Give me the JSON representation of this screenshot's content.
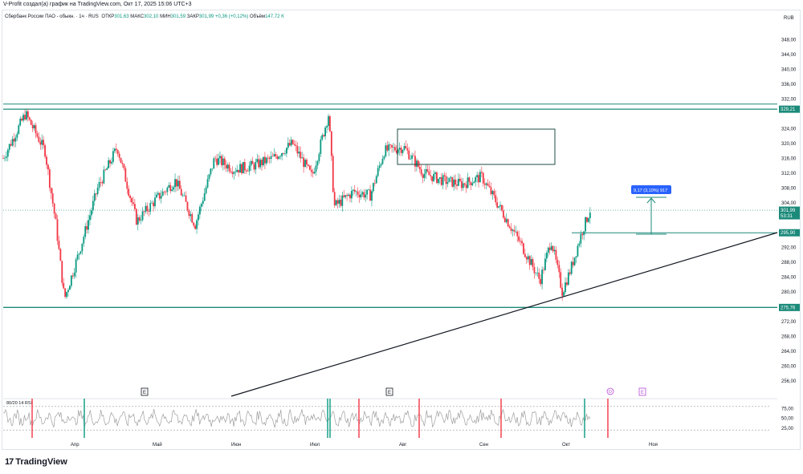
{
  "header": {
    "caption": "V-Profit создал(а) график на TradingView.com, Окт 17, 2025 15:06 UTC+3"
  },
  "legend": {
    "symbol": "Сбербанк России ПАО - обыкн. · 1ч · RUS",
    "open_label": "ОТКР",
    "open": "301,63",
    "high_label": "МАКС",
    "high": "302,10",
    "low_label": "МИН",
    "low": "301,59",
    "close_label": "ЗАКР",
    "close": "301,99",
    "change": "+0,36 (+0,12%)",
    "volume_label": "Объём",
    "volume": "147,72 K"
  },
  "price_axis": {
    "currency": "RUB",
    "ticks": [
      "348,00",
      "344,00",
      "340,00",
      "336,00",
      "332,00",
      "324,00",
      "320,00",
      "316,00",
      "312,00",
      "308,00",
      "304,00",
      "292,00",
      "288,00",
      "284,00",
      "280,00",
      "272,00",
      "268,00",
      "264,00",
      "260,00",
      "256,00"
    ],
    "badges": [
      {
        "text": "329,21",
        "bg": "#1b8a7a"
      },
      {
        "text": "301,99",
        "bg": "#1b8a7a",
        "sub": "53:31"
      },
      {
        "text": "295,90",
        "bg": "#1b8a7a"
      },
      {
        "text": "275,76",
        "bg": "#1b8a7a"
      }
    ]
  },
  "time_axis": {
    "labels": [
      "Апр",
      "Май",
      "Июн",
      "Июл",
      "Авг",
      "Сен",
      "Окт",
      "Ноя"
    ]
  },
  "measure_label": "9,17 (3,10%) 917",
  "earnings_marker": "E",
  "dividend_marker": "D",
  "rsi": {
    "title": "80/20 14 RSI",
    "ticks": [
      "75,00",
      "50,00",
      "25,00"
    ]
  },
  "brand": {
    "name": "TradingView",
    "icon": "17"
  },
  "colors": {
    "teal": "#1b8a7a",
    "up": "#089981",
    "down": "#f23645",
    "rsi": "#9e9e9e",
    "measure": "#2962ff"
  },
  "chart_data": {
    "type": "candlestick",
    "timeframe": "1h",
    "x_range": [
      "2025-03-20",
      "2025-11-10"
    ],
    "ylim": [
      254,
      350
    ],
    "levels": [
      329.21,
      295.9,
      275.76
    ],
    "current_price": 301.99,
    "approx_path": [
      {
        "x": "2025-03-20",
        "y": 316
      },
      {
        "x": "2025-03-24",
        "y": 322
      },
      {
        "x": "2025-03-28",
        "y": 328
      },
      {
        "x": "2025-04-04",
        "y": 318
      },
      {
        "x": "2025-04-08",
        "y": 298
      },
      {
        "x": "2025-04-11",
        "y": 278
      },
      {
        "x": "2025-04-16",
        "y": 290
      },
      {
        "x": "2025-04-23",
        "y": 308
      },
      {
        "x": "2025-04-30",
        "y": 319
      },
      {
        "x": "2025-05-07",
        "y": 299
      },
      {
        "x": "2025-05-14",
        "y": 305
      },
      {
        "x": "2025-05-21",
        "y": 310
      },
      {
        "x": "2025-05-28",
        "y": 298
      },
      {
        "x": "2025-06-04",
        "y": 316
      },
      {
        "x": "2025-06-11",
        "y": 313
      },
      {
        "x": "2025-06-18",
        "y": 314
      },
      {
        "x": "2025-06-25",
        "y": 316
      },
      {
        "x": "2025-07-02",
        "y": 320
      },
      {
        "x": "2025-07-09",
        "y": 311
      },
      {
        "x": "2025-07-15",
        "y": 328
      },
      {
        "x": "2025-07-17",
        "y": 303
      },
      {
        "x": "2025-07-24",
        "y": 307
      },
      {
        "x": "2025-07-30",
        "y": 306
      },
      {
        "x": "2025-08-04",
        "y": 318
      },
      {
        "x": "2025-08-11",
        "y": 319
      },
      {
        "x": "2025-08-18",
        "y": 312
      },
      {
        "x": "2025-08-25",
        "y": 310
      },
      {
        "x": "2025-09-01",
        "y": 309
      },
      {
        "x": "2025-09-08",
        "y": 311
      },
      {
        "x": "2025-09-15",
        "y": 302
      },
      {
        "x": "2025-09-22",
        "y": 293
      },
      {
        "x": "2025-09-29",
        "y": 283
      },
      {
        "x": "2025-10-03",
        "y": 294
      },
      {
        "x": "2025-10-07",
        "y": 280
      },
      {
        "x": "2025-10-10",
        "y": 286
      },
      {
        "x": "2025-10-14",
        "y": 296
      },
      {
        "x": "2025-10-17",
        "y": 302
      }
    ]
  }
}
